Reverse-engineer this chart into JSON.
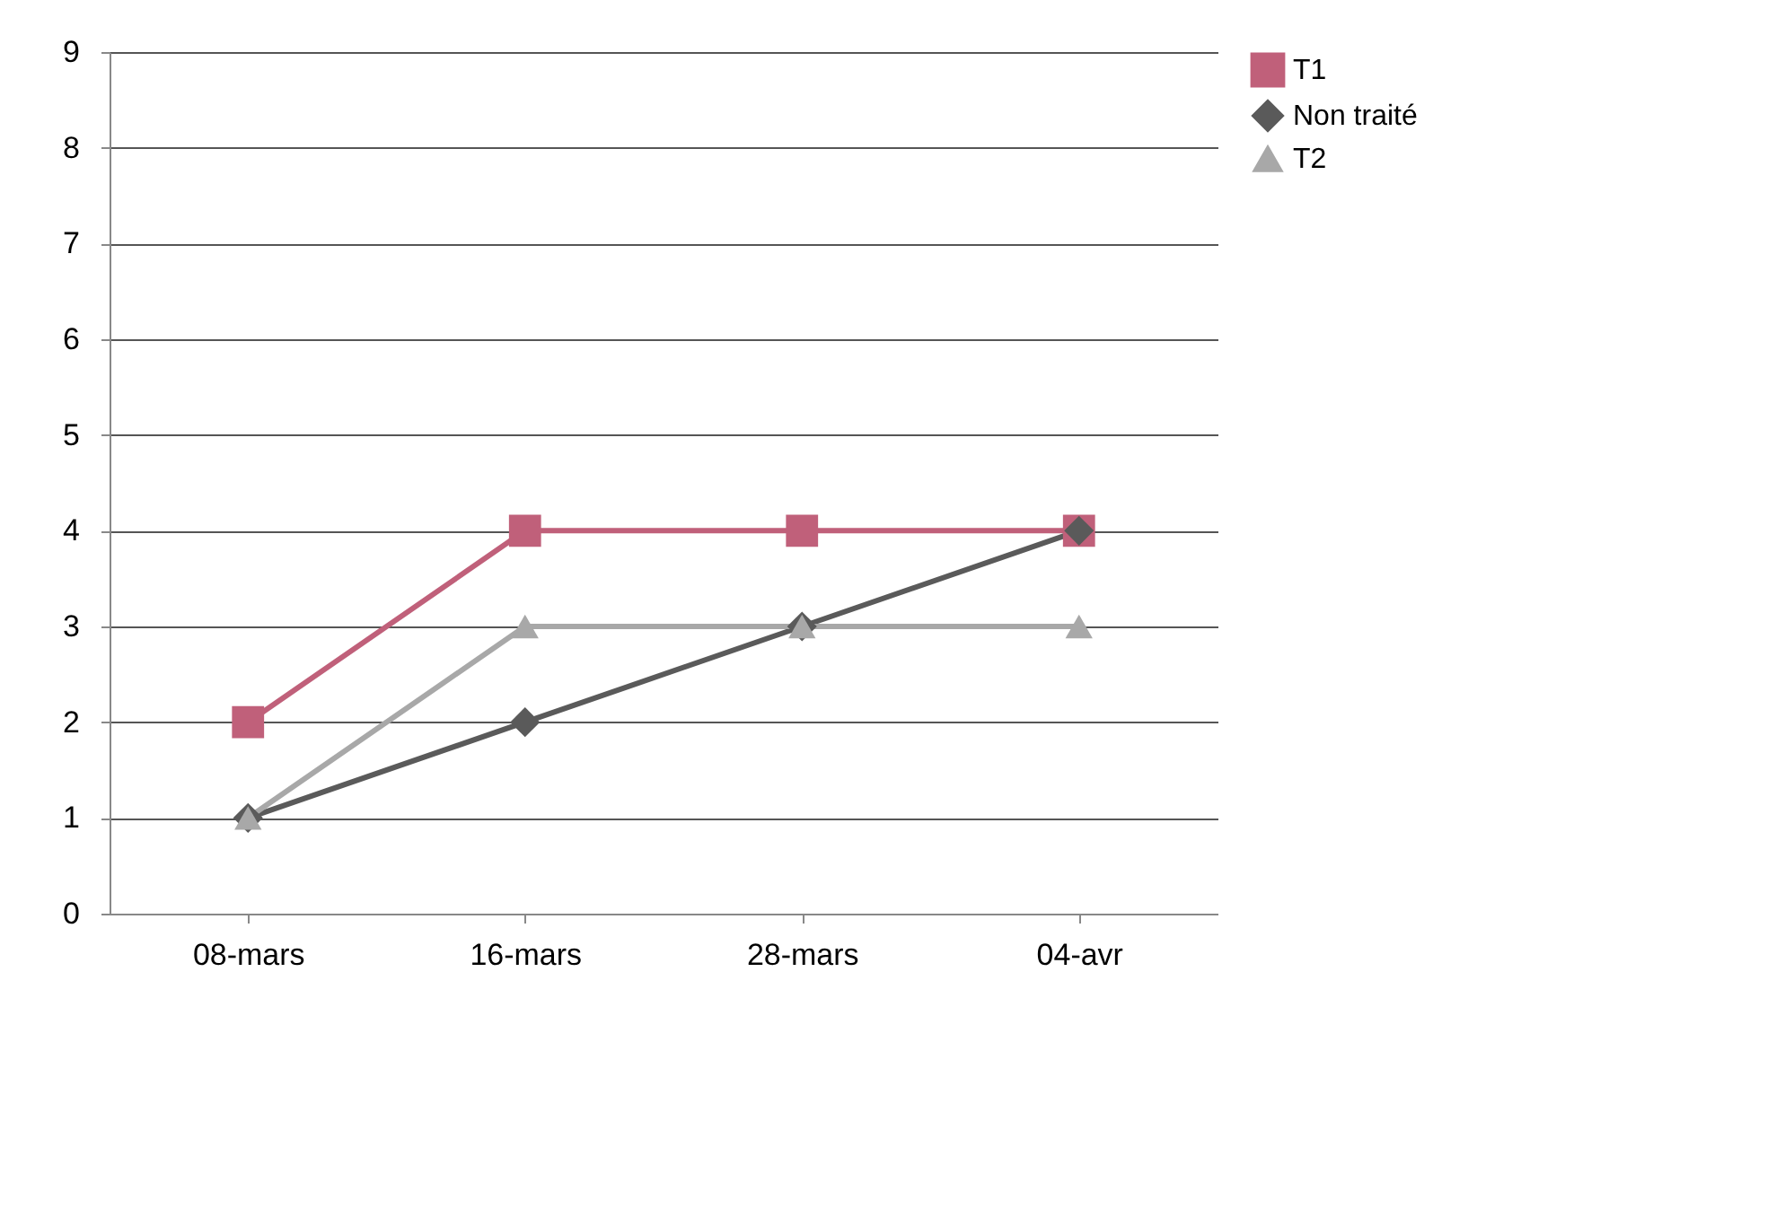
{
  "chart_data": {
    "type": "line",
    "categories": [
      "08-mars",
      "16-mars",
      "28-mars",
      "04-avr"
    ],
    "series": [
      {
        "name": "T1",
        "color": "#c0607a",
        "marker": "square",
        "values": [
          2,
          4,
          4,
          4
        ]
      },
      {
        "name": "Non traité",
        "color": "#5a5a5a",
        "marker": "diamond",
        "values": [
          1,
          2,
          3,
          4
        ]
      },
      {
        "name": "T2",
        "color": "#a8a8a8",
        "marker": "triangle",
        "values": [
          1,
          3,
          3,
          3
        ]
      }
    ],
    "ylim": [
      0,
      9
    ],
    "yticks": [
      0,
      1,
      2,
      3,
      4,
      5,
      6,
      7,
      8,
      9
    ],
    "grid": "y",
    "legend": "right"
  }
}
